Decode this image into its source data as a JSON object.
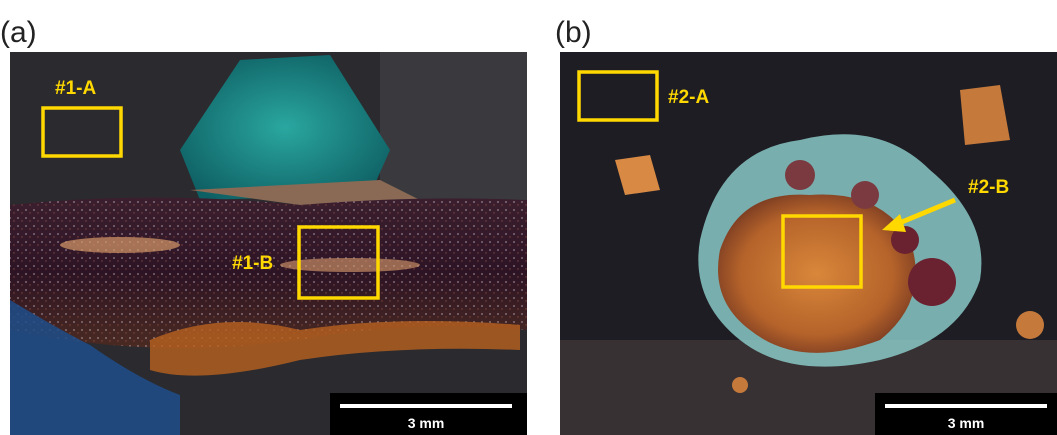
{
  "panels": [
    {
      "label": "(a)",
      "regions": [
        "#1-A",
        "#1-B"
      ],
      "scale_bar": "3 mm"
    },
    {
      "label": "(b)",
      "regions": [
        "#2-A",
        "#2-B"
      ],
      "scale_bar": "3 mm"
    }
  ]
}
